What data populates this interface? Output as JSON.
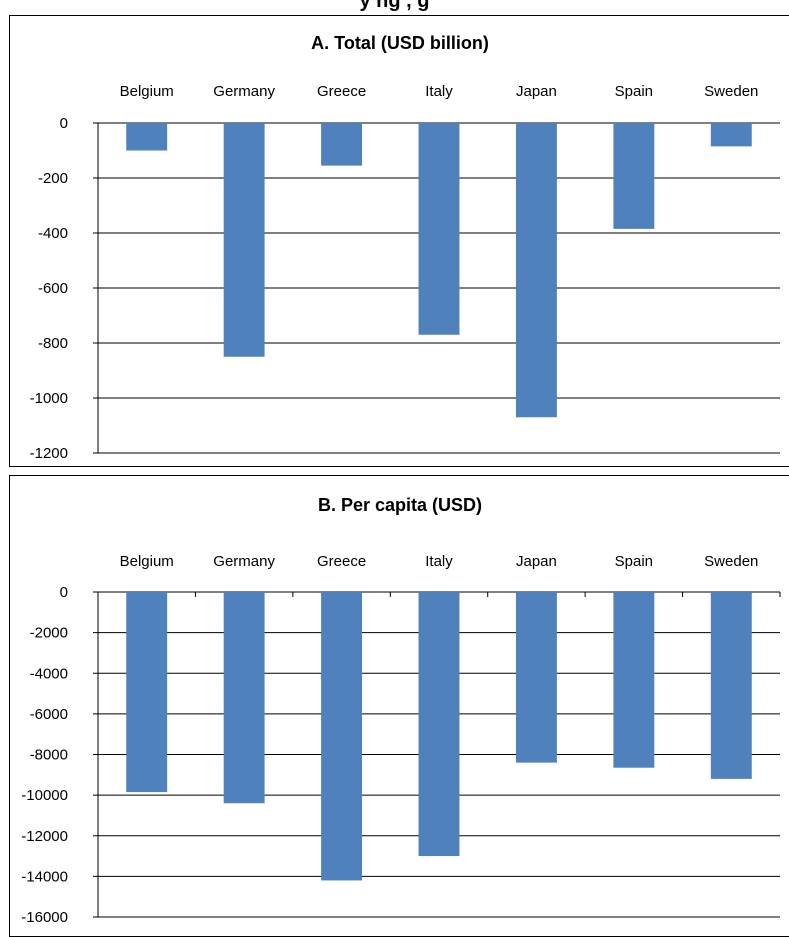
{
  "page": {
    "partial_title": "y       ng                   ,        g        "
  },
  "chart_data": [
    {
      "type": "bar",
      "title": "A. Total (USD billion)",
      "categories": [
        "Belgium",
        "Germany",
        "Greece",
        "Italy",
        "Japan",
        "Spain",
        "Sweden"
      ],
      "values": [
        -100,
        -850,
        -155,
        -770,
        -1070,
        -385,
        -85
      ],
      "ylim": [
        -1200,
        0
      ],
      "yticks": [
        0,
        -200,
        -400,
        -600,
        -800,
        -1000,
        -1200
      ],
      "grid": true,
      "bar_color": "#4f81bd"
    },
    {
      "type": "bar",
      "title": "B. Per capita (USD)",
      "categories": [
        "Belgium",
        "Germany",
        "Greece",
        "Italy",
        "Japan",
        "Spain",
        "Sweden"
      ],
      "values": [
        -9850,
        -10400,
        -14200,
        -13000,
        -8400,
        -8650,
        -9200
      ],
      "ylim": [
        -16000,
        0
      ],
      "yticks": [
        0,
        -2000,
        -4000,
        -6000,
        -8000,
        -10000,
        -12000,
        -14000,
        -16000
      ],
      "grid": true,
      "bar_color": "#4f81bd"
    }
  ]
}
